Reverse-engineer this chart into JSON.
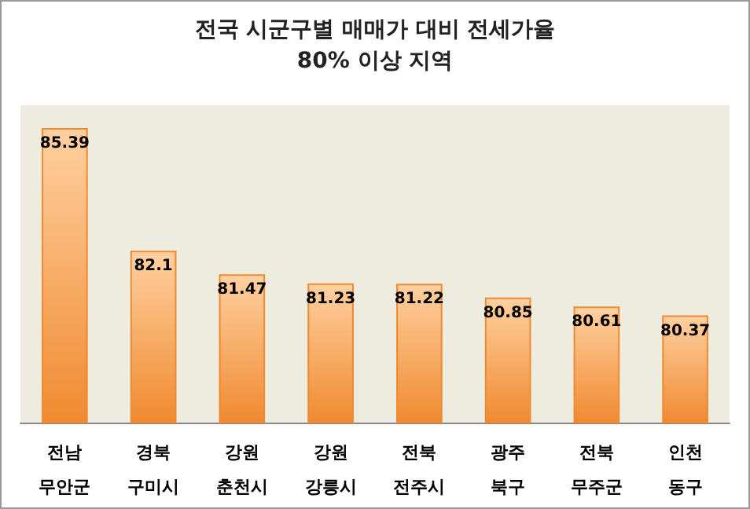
{
  "chart_data": {
    "type": "bar",
    "title": "전국 시군구별 매매가 대비 전세가율",
    "subtitle": "80% 이상 지역",
    "categories": [
      "전남\n무안군",
      "경북\n구미시",
      "강원\n춘천시",
      "강원\n강릉시",
      "전북\n전주시",
      "광주\n북구",
      "전북\n무주군",
      "인천\n동구"
    ],
    "values": [
      85.39,
      82.1,
      81.47,
      81.23,
      81.22,
      80.85,
      80.61,
      80.37
    ],
    "color": "#f08a30",
    "ylim": [
      77.5,
      86
    ],
    "data_labels": true
  }
}
